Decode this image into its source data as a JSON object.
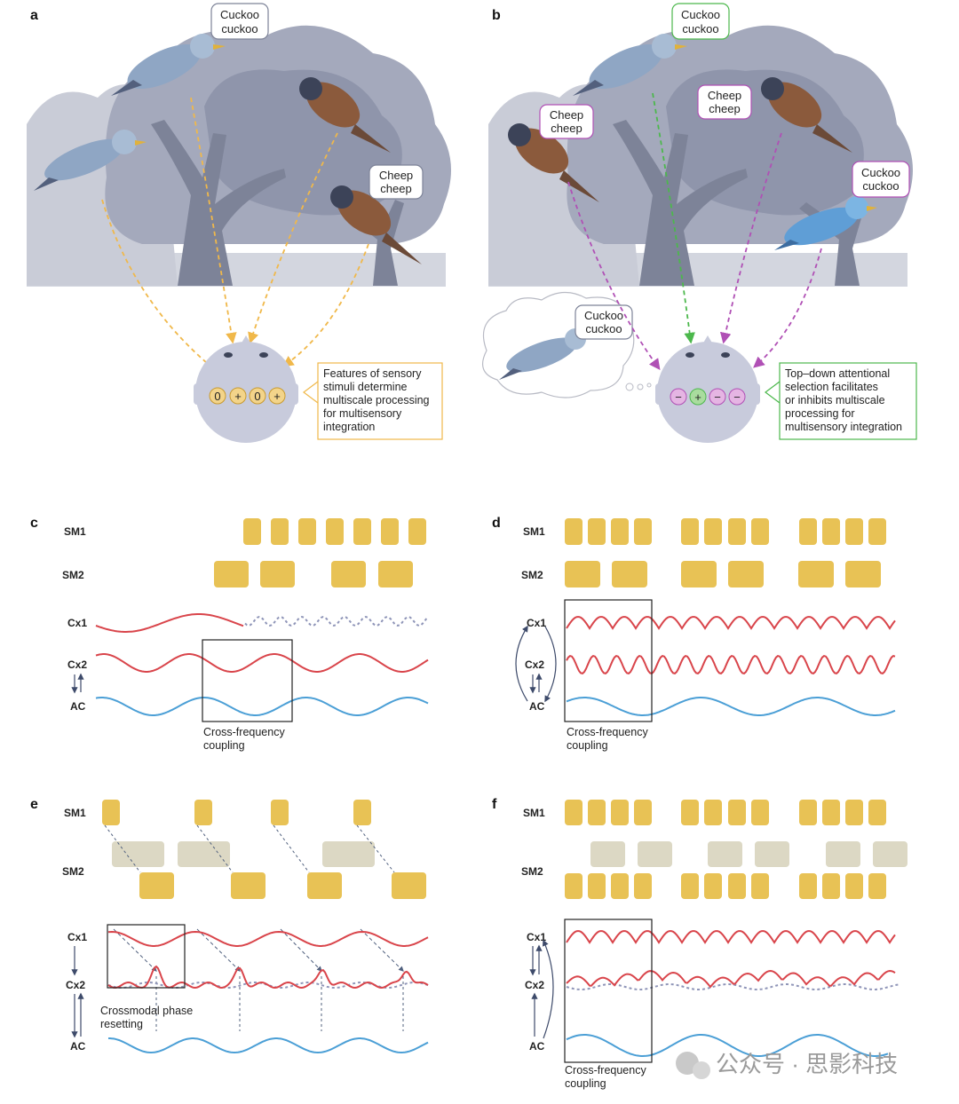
{
  "panels": {
    "a": {
      "label": "a",
      "speech": [
        {
          "l1": "Cuckoo",
          "l2": "cuckoo"
        },
        {
          "l1": "Cheep",
          "l2": "cheep"
        }
      ],
      "head_signs": [
        "0",
        "+",
        "0",
        "+"
      ],
      "note": [
        "Features of sensory",
        "stimuli determine",
        "multiscale processing",
        "for multisensory",
        "integration"
      ]
    },
    "b": {
      "label": "b",
      "speech": [
        {
          "l1": "Cuckoo",
          "l2": "cuckoo"
        },
        {
          "l1": "Cheep",
          "l2": "cheep"
        },
        {
          "l1": "Cheep",
          "l2": "cheep"
        },
        {
          "l1": "Cuckoo",
          "l2": "cuckoo"
        },
        {
          "l1": "Cuckoo",
          "l2": "cuckoo"
        }
      ],
      "head_signs": [
        "−",
        "+",
        "−",
        "−"
      ],
      "note": [
        "Top–down attentional",
        "selection facilitates",
        "or inhibits multiscale",
        "processing for",
        "multisensory integration"
      ]
    },
    "c": {
      "label": "c",
      "rows": [
        "SM1",
        "SM2",
        "Cx1",
        "Cx2",
        "AC"
      ],
      "caption": [
        "Cross-frequency",
        "coupling"
      ]
    },
    "d": {
      "label": "d",
      "rows": [
        "SM1",
        "SM2",
        "Cx1",
        "Cx2",
        "AC"
      ],
      "caption": [
        "Cross-frequency",
        "coupling"
      ]
    },
    "e": {
      "label": "e",
      "rows": [
        "SM1",
        "SM2",
        "Cx1",
        "Cx2",
        "AC"
      ],
      "caption": [
        "Crossmodal phase",
        "resetting"
      ]
    },
    "f": {
      "label": "f",
      "rows": [
        "SM1",
        "SM2",
        "Cx1",
        "Cx2",
        "AC"
      ],
      "caption": [
        "Cross-frequency",
        "coupling"
      ]
    }
  },
  "watermark": "公众号 · 思影科技",
  "colors": {
    "block": "#e8c255",
    "block_faded": "#dcd8c4",
    "cx_wave": "#d9454b",
    "ac_wave": "#4b9fd6",
    "dotted_wave": "#8f95b8",
    "tree": "#9aa0b4",
    "tree_light": "#c4c8d3",
    "head": "#c8cbdc",
    "yellow_arrow": "#f0b84a",
    "green_arrow": "#4cb84c",
    "purple_arrow": "#b050b5"
  }
}
